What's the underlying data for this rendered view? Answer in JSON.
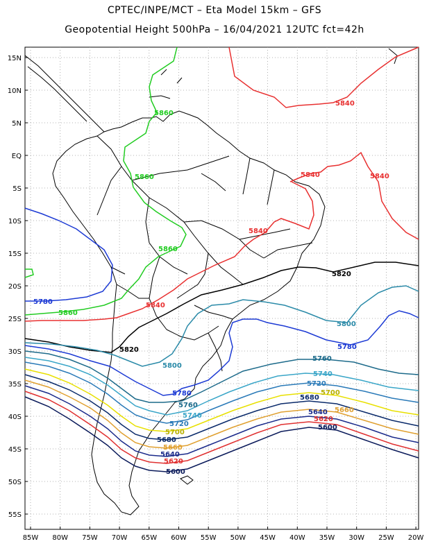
{
  "header": {
    "line1": "CPTEC/INPE/MCT –  Eta Model 15km – GFS",
    "line2": "Geopotential Height 500hPa – 16/04/2021 12UTC fct=42h"
  },
  "axes": {
    "lon_labels": [
      "85W",
      "80W",
      "75W",
      "70W",
      "65W",
      "60W",
      "55W",
      "50W",
      "45W",
      "40W",
      "35W",
      "30W",
      "25W",
      "20W"
    ],
    "lat_labels": [
      "15N",
      "10N",
      "5N",
      "EQ",
      "5S",
      "10S",
      "15S",
      "20S",
      "25S",
      "30S",
      "35S",
      "40S",
      "45S",
      "50S",
      "55S"
    ]
  },
  "contours": [
    {
      "value": "5840",
      "color": "#e83030",
      "labels": [
        "5840",
        "5840",
        "5840",
        "5840",
        "5840"
      ]
    },
    {
      "value": "5860",
      "color": "#22cc22",
      "labels": [
        "5860",
        "5860",
        "5860",
        "5860"
      ]
    },
    {
      "value": "5820",
      "color": "#000000",
      "labels": [
        "5820",
        "5820"
      ]
    },
    {
      "value": "5800",
      "color": "#2a8aa8",
      "labels": [
        "5800",
        "5800"
      ]
    },
    {
      "value": "5780",
      "color": "#1c3ad4",
      "labels": [
        "5780",
        "5780",
        "5780"
      ]
    },
    {
      "value": "5760",
      "color": "#1c6a8a",
      "labels": [
        "5760",
        "5760"
      ]
    },
    {
      "value": "5740",
      "color": "#3aa6c8",
      "labels": [
        "5740",
        "5740"
      ]
    },
    {
      "value": "5720",
      "color": "#2a7ab8",
      "labels": [
        "5720",
        "5720"
      ]
    },
    {
      "value": "5700",
      "color": "#e8e000",
      "labels": [
        "5700",
        "5700"
      ]
    },
    {
      "value": "5680",
      "color": "#0a2a6a",
      "labels": [
        "5680",
        "5680"
      ]
    },
    {
      "value": "5660",
      "color": "#e0a030",
      "labels": [
        "5660",
        "5660"
      ]
    },
    {
      "value": "5640",
      "color": "#1a2a8a",
      "labels": [
        "5640",
        "5640"
      ]
    },
    {
      "value": "5620",
      "color": "#e03030",
      "labels": [
        "5620",
        "5620"
      ]
    },
    {
      "value": "5600",
      "color": "#0a1a5a",
      "labels": [
        "5600",
        "5600"
      ]
    }
  ]
}
